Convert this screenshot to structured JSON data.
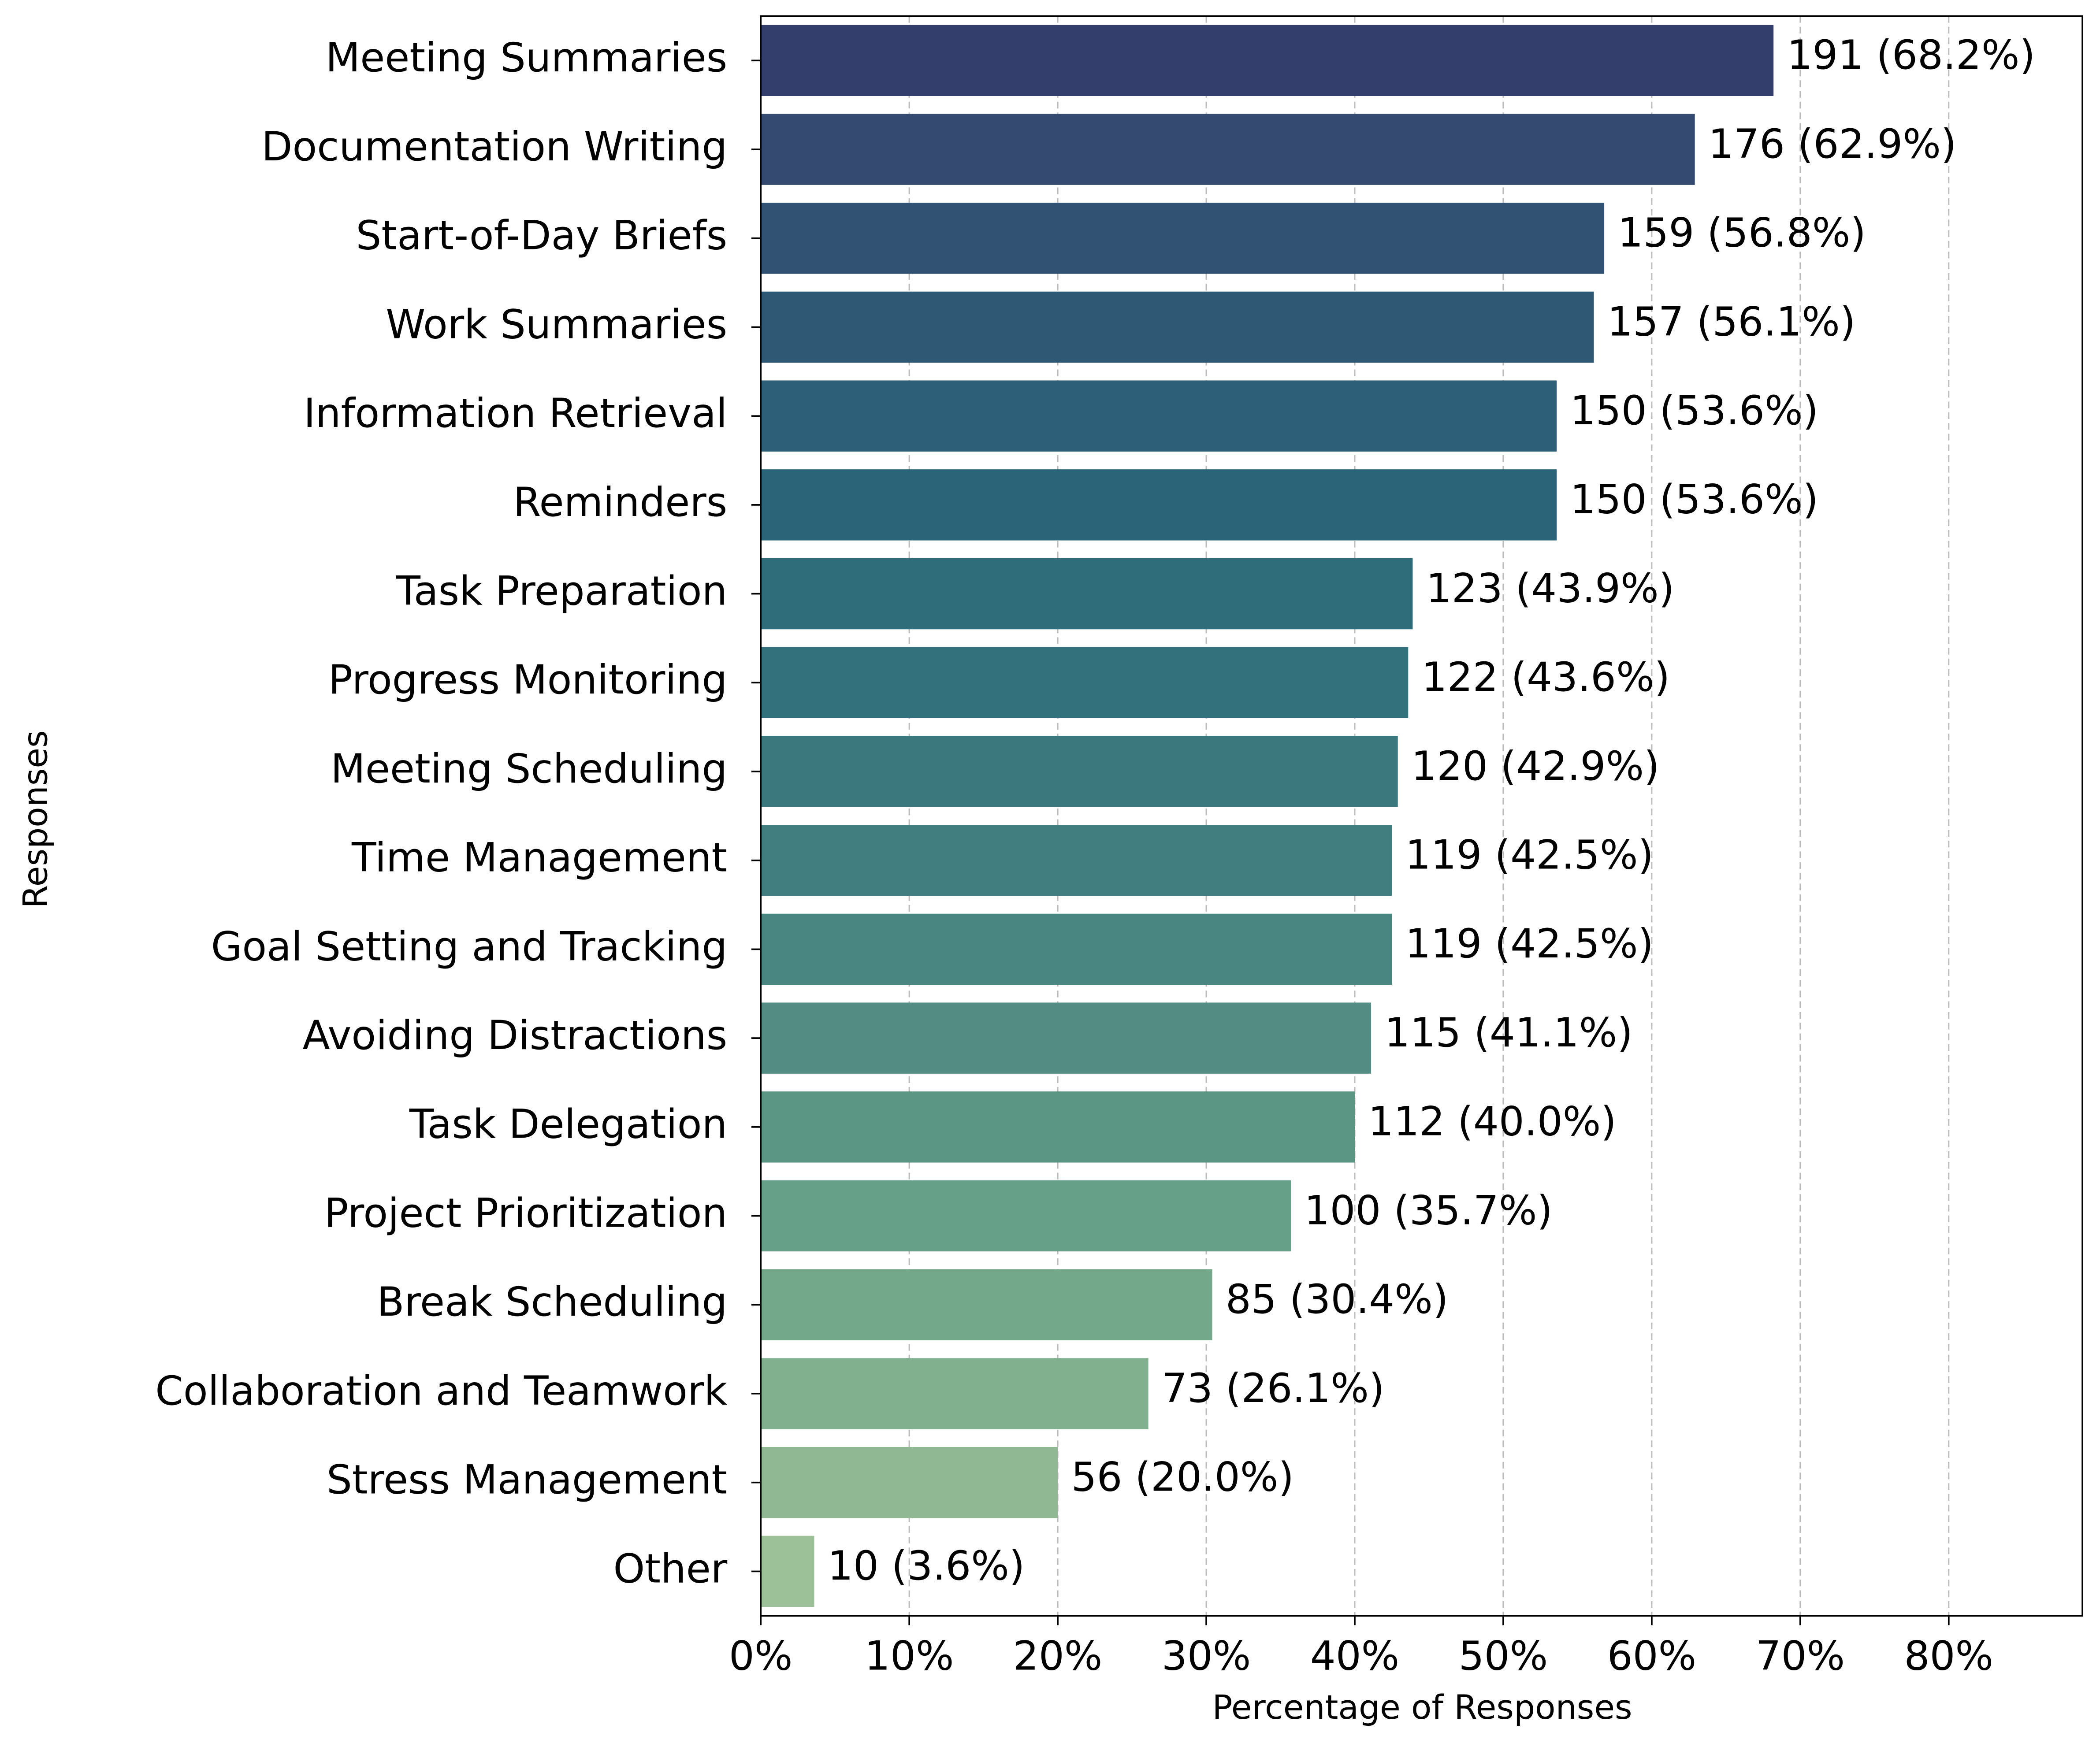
{
  "chart_data": {
    "type": "barh",
    "xlabel": "Percentage of Responses",
    "ylabel": "Responses",
    "categories": [
      "Meeting Summaries",
      "Documentation Writing",
      "Start-of-Day Briefs",
      "Work Summaries",
      "Information Retrieval",
      "Reminders",
      "Task Preparation",
      "Progress Monitoring",
      "Meeting Scheduling",
      "Time Management",
      "Goal Setting and Tracking",
      "Avoiding Distractions",
      "Task Delegation",
      "Project Prioritization",
      "Break Scheduling",
      "Collaboration and Teamwork",
      "Stress Management",
      "Other"
    ],
    "values": [
      68.2,
      62.9,
      56.8,
      56.1,
      53.6,
      53.6,
      43.9,
      43.6,
      42.9,
      42.5,
      42.5,
      41.1,
      40.0,
      35.7,
      30.4,
      26.1,
      20.0,
      3.6
    ],
    "value_labels": [
      "191 (68.2%)",
      "176 (62.9%)",
      "159 (56.8%)",
      "157 (56.1%)",
      "150 (53.6%)",
      "150 (53.6%)",
      "123 (43.9%)",
      "122 (43.6%)",
      "120 (42.9%)",
      "119 (42.5%)",
      "119 (42.5%)",
      "115 (41.1%)",
      "112 (40.0%)",
      "100 (35.7%)",
      "85 (30.4%)",
      "73 (26.1%)",
      "56 (20.0%)",
      "10 (3.6%)"
    ],
    "colors": [
      "#333e6c",
      "#344a70",
      "#315272",
      "#2f5875",
      "#2d5f78",
      "#2b6479",
      "#2f6d7b",
      "#33727c",
      "#3a787e",
      "#417e80",
      "#4a8681",
      "#528c83",
      "#5b9584",
      "#67a088",
      "#74a88a",
      "#81b08e",
      "#8fb893",
      "#9cc199"
    ],
    "xlim": [
      0,
      89
    ],
    "xticks": [
      {
        "value": 0,
        "label": "0%"
      },
      {
        "value": 10,
        "label": "10%"
      },
      {
        "value": 20,
        "label": "20%"
      },
      {
        "value": 30,
        "label": "30%"
      },
      {
        "value": 40,
        "label": "40%"
      },
      {
        "value": 50,
        "label": "50%"
      },
      {
        "value": 60,
        "label": "60%"
      },
      {
        "value": 70,
        "label": "70%"
      },
      {
        "value": 80,
        "label": "80%"
      }
    ],
    "grid": true
  }
}
